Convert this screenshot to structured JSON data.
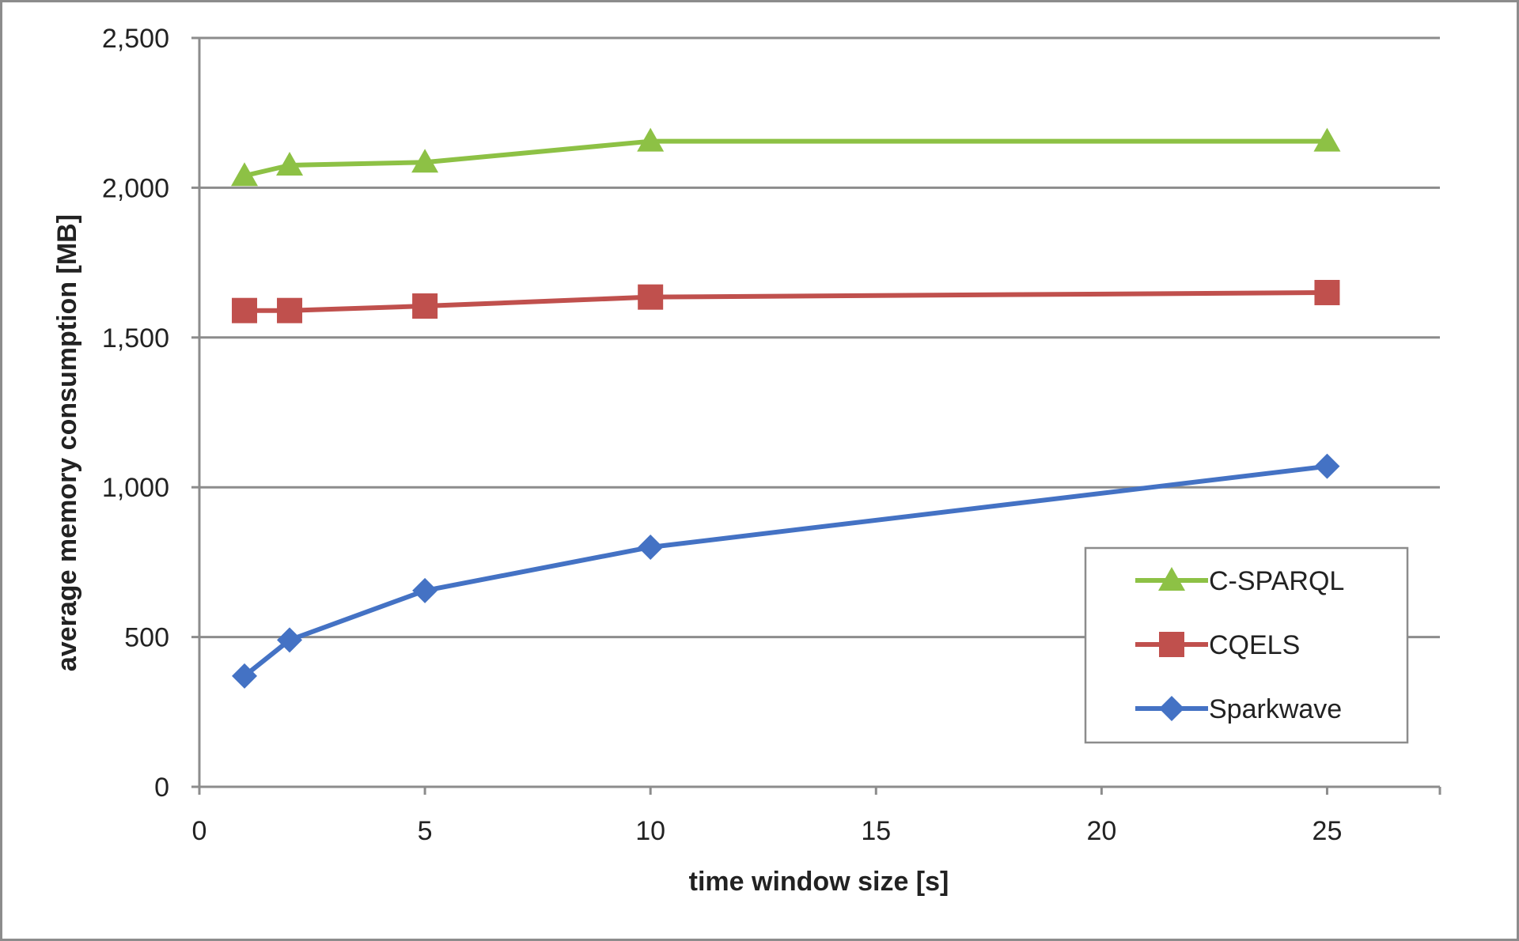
{
  "chart_data": {
    "type": "line",
    "title": "",
    "xlabel": "time window size [s]",
    "ylabel": "average memory consumption [MB]",
    "xlim": [
      0,
      27.5
    ],
    "ylim": [
      0,
      2500
    ],
    "x_ticks": [
      0,
      5,
      10,
      15,
      20,
      25
    ],
    "y_ticks": [
      0,
      500,
      1000,
      1500,
      2000,
      2500
    ],
    "x_tick_labels": [
      "0",
      "5",
      "10",
      "15",
      "20",
      "25"
    ],
    "y_tick_labels": [
      "0",
      "500",
      "1,000",
      "1,500",
      "2,000",
      "2,500"
    ],
    "grid": "horizontal",
    "legend_position": "right",
    "series": [
      {
        "name": "C-SPARQL",
        "color": "#8DC145",
        "marker": "triangle",
        "x": [
          1,
          2,
          5,
          10,
          25
        ],
        "y": [
          2040,
          2075,
          2085,
          2155,
          2155
        ]
      },
      {
        "name": "CQELS",
        "color": "#C0504D",
        "marker": "square",
        "x": [
          1,
          2,
          5,
          10,
          25
        ],
        "y": [
          1590,
          1590,
          1605,
          1635,
          1650
        ]
      },
      {
        "name": "Sparkwave",
        "color": "#4472C4",
        "marker": "diamond",
        "x": [
          1,
          2,
          5,
          10,
          25
        ],
        "y": [
          370,
          490,
          655,
          800,
          1070
        ]
      }
    ]
  }
}
